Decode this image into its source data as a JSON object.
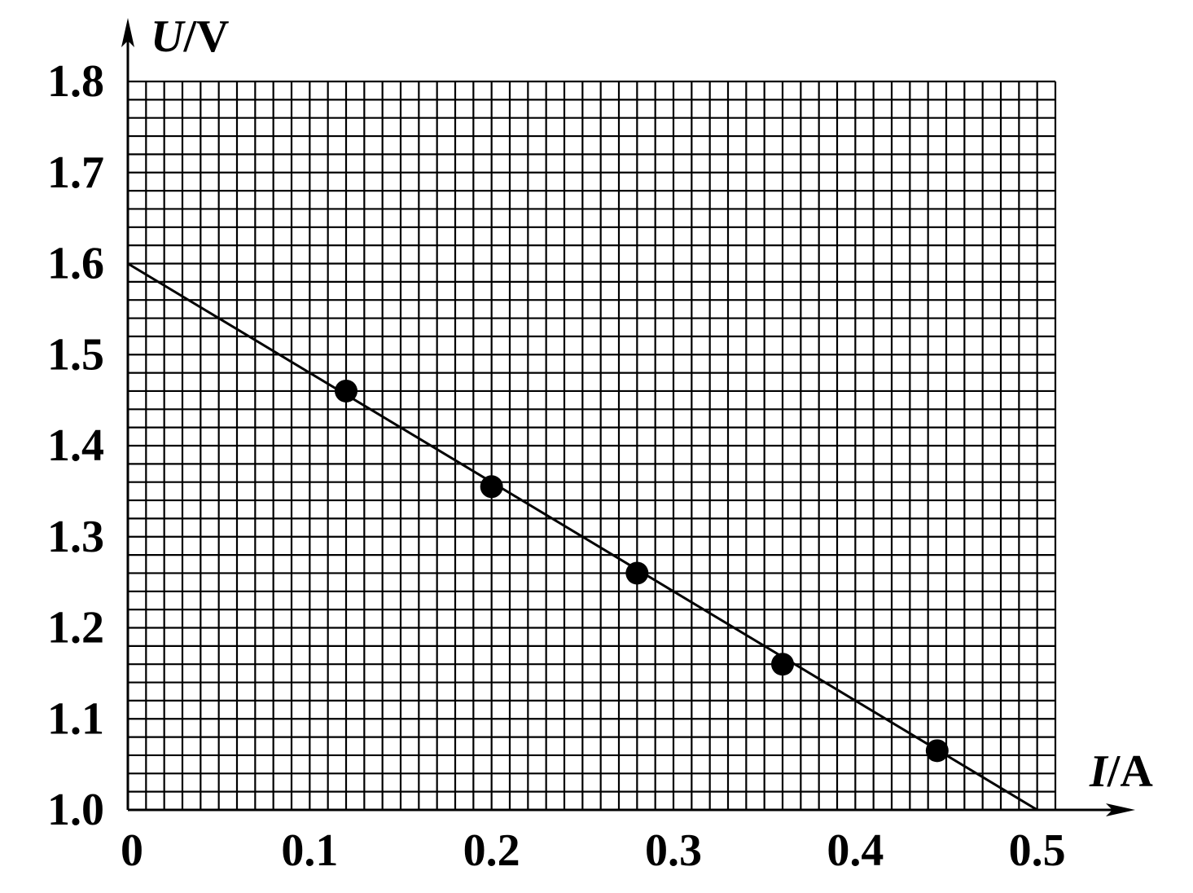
{
  "chart_data": {
    "type": "scatter",
    "xlabel": {
      "variable": "I",
      "unit": "/A"
    },
    "ylabel": {
      "variable": "U",
      "unit": "/V"
    },
    "xlim": [
      0,
      0.51
    ],
    "ylim": [
      1.0,
      1.8
    ],
    "x_ticks": [
      "0",
      "0.1",
      "0.2",
      "0.3",
      "0.4",
      "0.5"
    ],
    "x_tick_values": [
      0,
      0.1,
      0.2,
      0.3,
      0.4,
      0.5
    ],
    "y_ticks": [
      "1.0",
      "1.1",
      "1.2",
      "1.3",
      "1.4",
      "1.5",
      "1.6",
      "1.7",
      "1.8"
    ],
    "y_tick_values": [
      1.0,
      1.1,
      1.2,
      1.3,
      1.4,
      1.5,
      1.6,
      1.7,
      1.8
    ],
    "grid": true,
    "grid_minor_step_x": 0.01,
    "grid_minor_step_y": 0.02,
    "series": [
      {
        "points": [
          {
            "x": 0.12,
            "y": 1.46
          },
          {
            "x": 0.2,
            "y": 1.355
          },
          {
            "x": 0.28,
            "y": 1.26
          },
          {
            "x": 0.36,
            "y": 1.16
          },
          {
            "x": 0.445,
            "y": 1.065
          }
        ]
      }
    ],
    "fit_line": {
      "x": [
        0,
        0.5
      ],
      "y": [
        1.6,
        1.0
      ]
    },
    "colors": {
      "ink": "#000000",
      "background": "#ffffff"
    }
  }
}
